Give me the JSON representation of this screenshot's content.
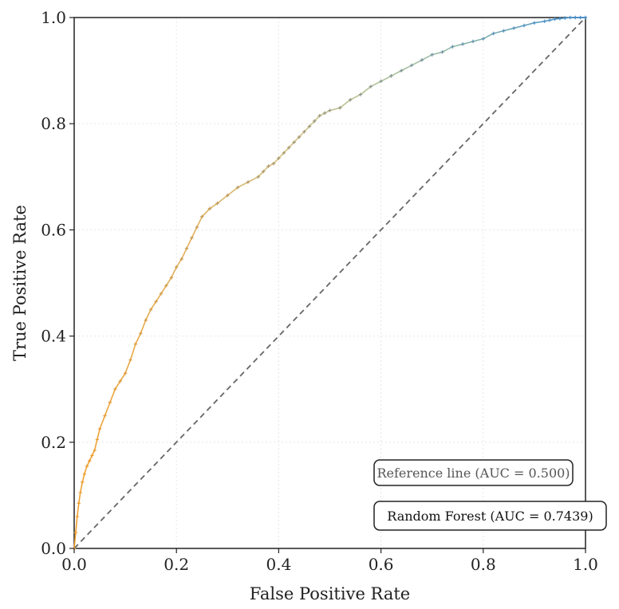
{
  "chart_data": {
    "type": "line",
    "xlabel": "False Positive Rate",
    "ylabel": "True Positive Rate",
    "xlim": [
      0,
      1
    ],
    "ylim": [
      0,
      1
    ],
    "xticks": [
      "0.0",
      "0.2",
      "0.4",
      "0.6",
      "0.8",
      "1.0"
    ],
    "yticks": [
      "0.0",
      "0.2",
      "0.4",
      "0.6",
      "0.8",
      "1.0"
    ],
    "grid": true,
    "legend_position": "bottom-right",
    "colors": {
      "curve_start": "#f0a030",
      "curve_end": "#3f8fd2",
      "reference": "#666666"
    },
    "series": [
      {
        "name": "Random Forest (AUC = 0.7439)",
        "x": [
          0.0,
          0.003,
          0.006,
          0.009,
          0.012,
          0.016,
          0.02,
          0.025,
          0.03,
          0.035,
          0.04,
          0.045,
          0.05,
          0.06,
          0.07,
          0.08,
          0.09,
          0.1,
          0.11,
          0.12,
          0.13,
          0.14,
          0.15,
          0.16,
          0.17,
          0.18,
          0.19,
          0.2,
          0.21,
          0.22,
          0.23,
          0.24,
          0.25,
          0.265,
          0.28,
          0.3,
          0.32,
          0.34,
          0.36,
          0.37,
          0.38,
          0.39,
          0.4,
          0.41,
          0.42,
          0.43,
          0.44,
          0.45,
          0.46,
          0.47,
          0.48,
          0.49,
          0.5,
          0.52,
          0.54,
          0.56,
          0.58,
          0.6,
          0.62,
          0.64,
          0.66,
          0.68,
          0.7,
          0.72,
          0.74,
          0.76,
          0.78,
          0.8,
          0.82,
          0.84,
          0.86,
          0.88,
          0.9,
          0.92,
          0.93,
          0.94,
          0.95,
          0.96,
          0.97,
          0.98,
          0.99,
          1.0
        ],
        "y": [
          0.0,
          0.03,
          0.06,
          0.085,
          0.105,
          0.125,
          0.14,
          0.155,
          0.165,
          0.175,
          0.185,
          0.205,
          0.225,
          0.25,
          0.275,
          0.3,
          0.315,
          0.33,
          0.355,
          0.385,
          0.405,
          0.43,
          0.45,
          0.465,
          0.48,
          0.495,
          0.51,
          0.53,
          0.545,
          0.565,
          0.585,
          0.605,
          0.625,
          0.64,
          0.65,
          0.665,
          0.68,
          0.69,
          0.7,
          0.71,
          0.72,
          0.725,
          0.735,
          0.745,
          0.755,
          0.765,
          0.775,
          0.785,
          0.795,
          0.805,
          0.815,
          0.82,
          0.825,
          0.83,
          0.845,
          0.855,
          0.87,
          0.88,
          0.89,
          0.9,
          0.91,
          0.92,
          0.93,
          0.935,
          0.945,
          0.95,
          0.955,
          0.96,
          0.97,
          0.975,
          0.98,
          0.985,
          0.99,
          0.993,
          0.995,
          0.997,
          0.998,
          0.999,
          1.0,
          1.0,
          1.0,
          1.0
        ]
      },
      {
        "name": "Reference line (AUC = 0.500)",
        "x": [
          0,
          1
        ],
        "y": [
          0,
          1
        ]
      }
    ]
  }
}
